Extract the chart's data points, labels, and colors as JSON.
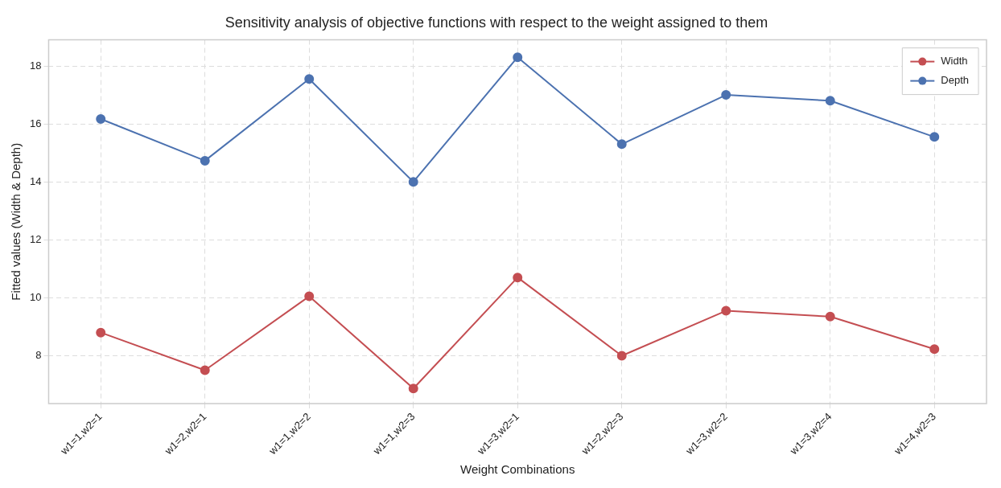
{
  "chart_data": {
    "type": "line",
    "title": "Sensitivity analysis of objective functions with respect to the weight assigned to them",
    "xlabel": "Weight Combinations",
    "ylabel": "Fitted values (Width & Depth)",
    "categories": [
      "w1=1,w2=1",
      "w1=2,w2=1",
      "w1=1,w2=2",
      "w1=1,w2=3",
      "w1=3,w2=1",
      "w1=2,w2=3",
      "w1=3,w2=2",
      "w1=3,w2=4",
      "w1=4,w2=3"
    ],
    "series": [
      {
        "name": "Width",
        "color": "#c44e52",
        "values": [
          8.8,
          7.5,
          10.05,
          6.87,
          10.7,
          8.0,
          9.55,
          9.35,
          8.23
        ]
      },
      {
        "name": "Depth",
        "color": "#4c72b0",
        "values": [
          16.17,
          14.73,
          17.55,
          14.0,
          18.3,
          15.3,
          17.0,
          16.8,
          15.55
        ]
      }
    ],
    "ylim": [
      6.35,
      18.9
    ],
    "yticks": [
      8,
      10,
      12,
      14,
      16,
      18
    ],
    "grid": true,
    "legend": "top right",
    "marker": "circle",
    "line_style": "solid"
  }
}
